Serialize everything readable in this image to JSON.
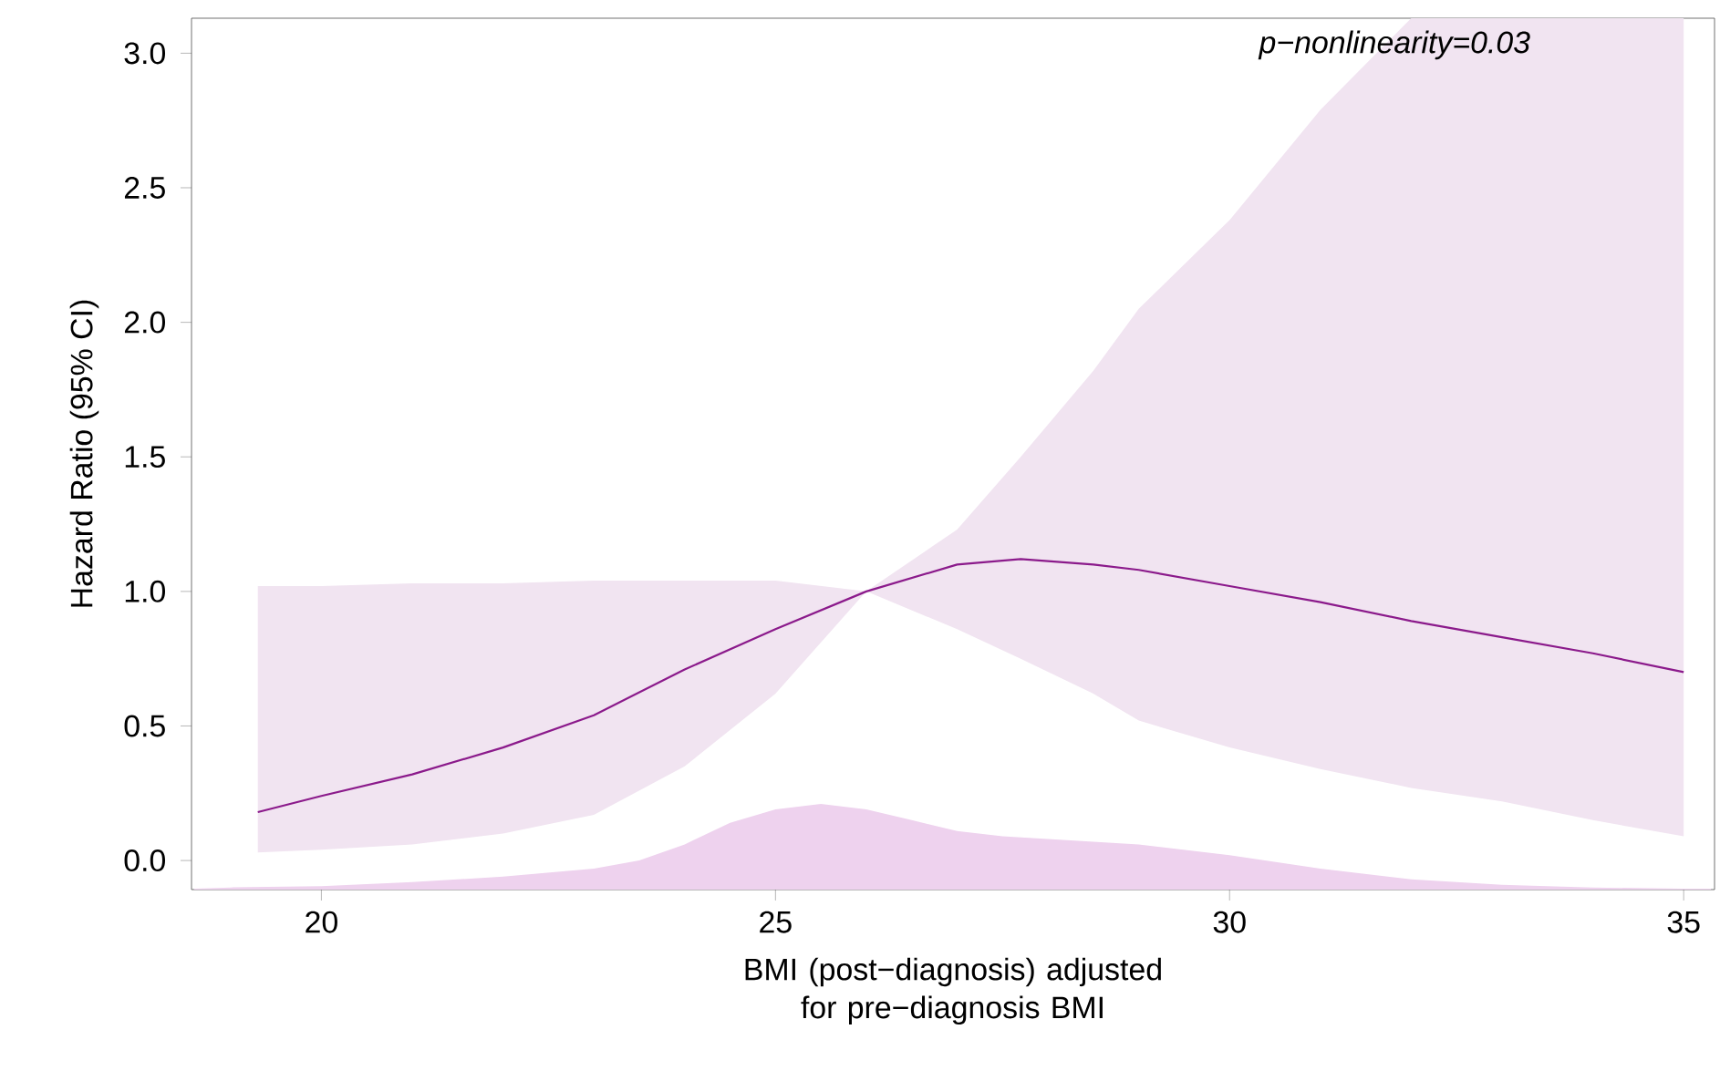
{
  "chart_data": {
    "type": "line",
    "xlabel": "BMI (post−diagnosis) adjusted for pre−diagnosis BMI",
    "ylabel": "Hazard Ratio (95% CI)",
    "annotations": [
      "p−nonlinearity=0.03"
    ],
    "xlim": [
      18.57,
      35.34
    ],
    "ylim": [
      -0.108,
      3.13
    ],
    "xticks": [
      20,
      25,
      30,
      35
    ],
    "yticks": [
      {
        "value": 0,
        "label": "0.0"
      },
      {
        "value": 0.5,
        "label": "0.5"
      },
      {
        "value": 1,
        "label": "1.0"
      },
      {
        "value": 1.5,
        "label": "1.5"
      },
      {
        "value": 2,
        "label": "2.0"
      },
      {
        "value": 2.5,
        "label": "2.5"
      },
      {
        "value": 3,
        "label": "3.0"
      }
    ],
    "series": [
      {
        "type": "area",
        "color": "#eed2ee",
        "x": [
          18.6,
          19,
          20,
          21,
          22,
          23,
          23.5,
          24,
          24.5,
          25,
          25.5,
          26,
          26.5,
          27,
          27.5,
          28,
          29,
          30,
          31,
          32,
          33,
          34,
          35,
          35.3
        ],
        "values": [
          -0.105,
          -0.1,
          -0.095,
          -0.08,
          -0.06,
          -0.03,
          0.0,
          0.06,
          0.14,
          0.19,
          0.21,
          0.19,
          0.15,
          0.11,
          0.09,
          0.08,
          0.06,
          0.02,
          -0.03,
          -0.07,
          -0.09,
          -0.1,
          -0.105,
          -0.105
        ]
      },
      {
        "color": "#8b1a8b",
        "x": [
          19.3,
          20,
          21,
          22,
          23,
          24,
          25,
          26,
          27,
          27.7,
          28.5,
          29,
          30,
          31,
          32,
          33,
          34,
          35
        ],
        "values": [
          0.18,
          0.24,
          0.32,
          0.42,
          0.54,
          0.71,
          0.86,
          1.0,
          1.1,
          1.12,
          1.1,
          1.08,
          1.02,
          0.96,
          0.89,
          0.83,
          0.77,
          0.7
        ],
        "lower": [
          0.03,
          0.04,
          0.06,
          0.1,
          0.17,
          0.35,
          0.62,
          1.0,
          0.86,
          0.75,
          0.62,
          0.52,
          0.42,
          0.34,
          0.27,
          0.22,
          0.15,
          0.09
        ],
        "upper": [
          1.02,
          1.02,
          1.03,
          1.03,
          1.04,
          1.04,
          1.04,
          1.0,
          1.23,
          1.5,
          1.82,
          2.05,
          2.38,
          2.79,
          3.13,
          3.13,
          3.13,
          3.13
        ]
      }
    ]
  }
}
